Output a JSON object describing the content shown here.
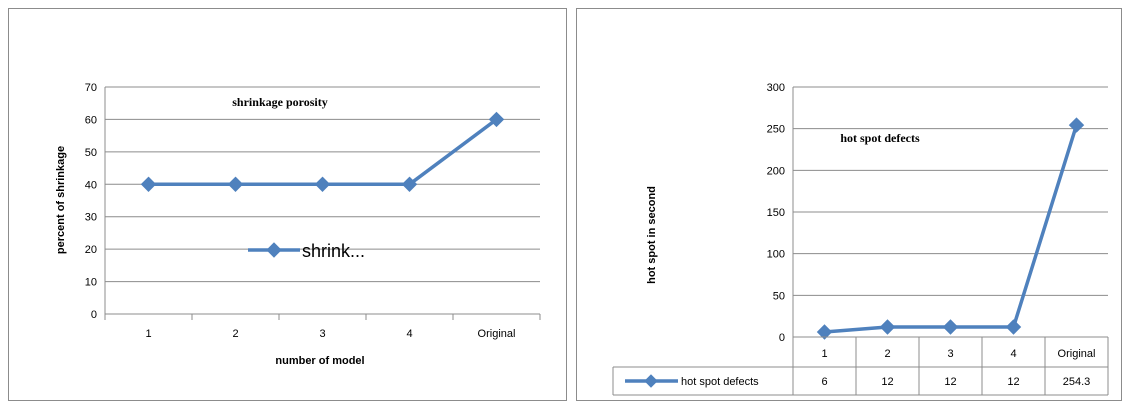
{
  "chart_data": [
    {
      "type": "line",
      "title": "shrinkage porosity",
      "xlabel": "number of model",
      "ylabel": "percent of shrinkage",
      "categories": [
        "1",
        "2",
        "3",
        "4",
        "Original"
      ],
      "series": [
        {
          "name": "shrink...",
          "values": [
            40,
            40,
            40,
            40,
            60
          ],
          "color": "#4f81bd"
        }
      ],
      "ylim": [
        0,
        70
      ],
      "yticks": [
        0,
        10,
        20,
        30,
        40,
        50,
        60,
        70
      ],
      "grid": true,
      "legend": "center"
    },
    {
      "type": "line",
      "title": "hot spot defects",
      "xlabel": "",
      "ylabel": "hot spot in second",
      "categories": [
        "1",
        "2",
        "3",
        "4",
        "Original"
      ],
      "series": [
        {
          "name": "hot spot defects",
          "values": [
            6,
            12,
            12,
            12,
            254.3
          ],
          "labels": [
            "6",
            "12",
            "12",
            "12",
            "254.3"
          ],
          "color": "#4f81bd"
        }
      ],
      "ylim": [
        0,
        300
      ],
      "yticks": [
        0,
        50,
        100,
        150,
        200,
        250,
        300
      ],
      "grid": true,
      "legend": "data-table"
    }
  ]
}
